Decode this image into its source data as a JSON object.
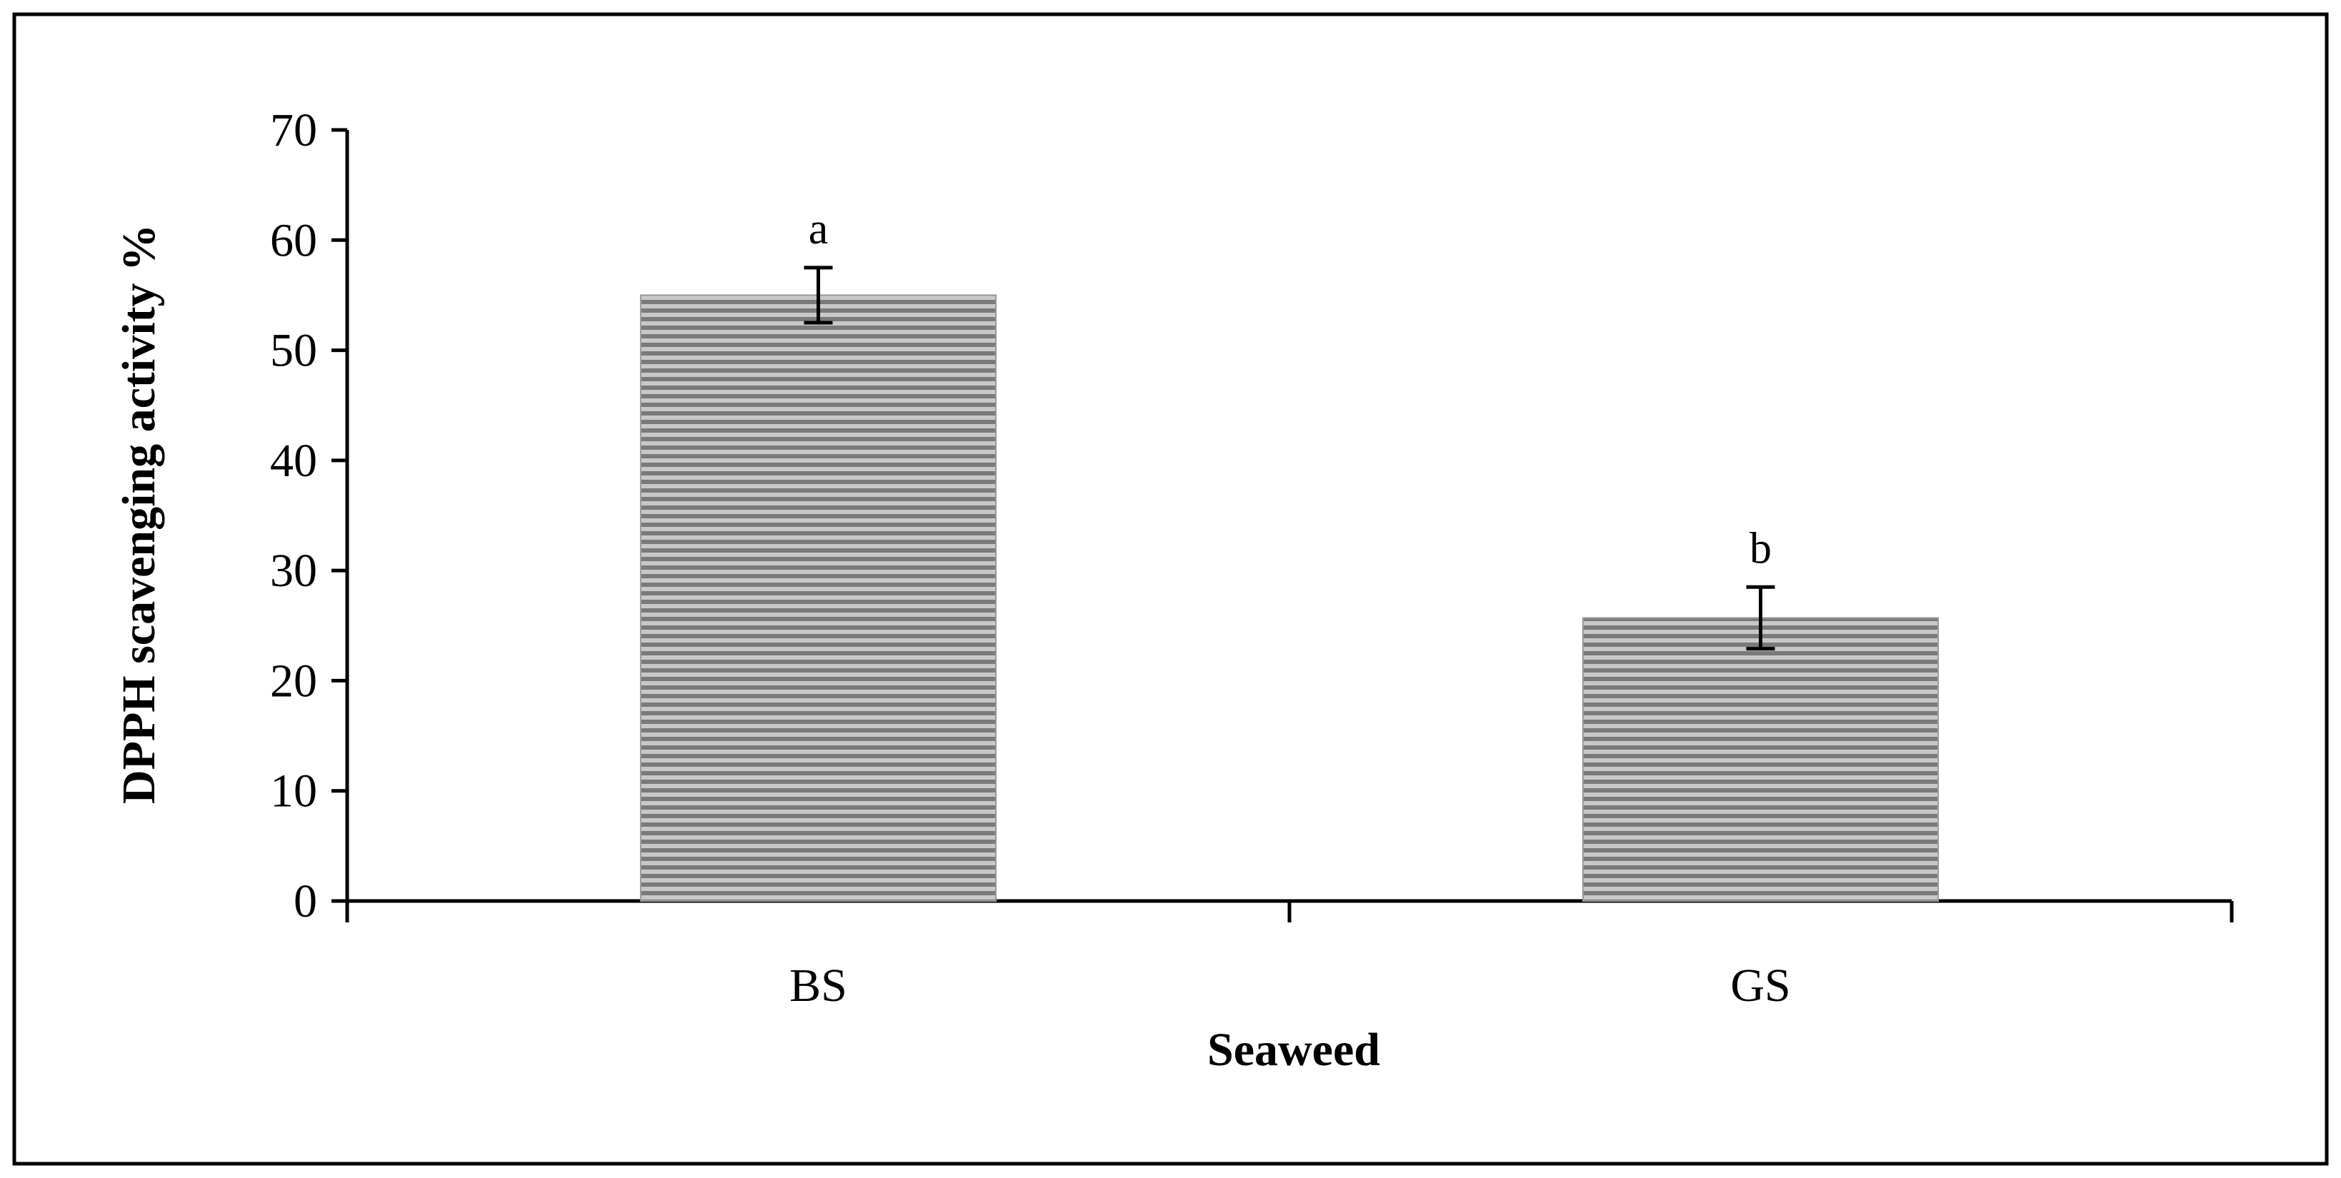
{
  "chart_data": {
    "type": "bar",
    "categories": [
      "BS",
      "GS"
    ],
    "values": [
      55.0,
      25.7
    ],
    "errors": [
      2.5,
      2.8
    ],
    "significance_labels": [
      "a",
      "b"
    ],
    "xlabel": "Seaweed",
    "ylabel": "DPPH scavenging activity %",
    "ylim": [
      0,
      70
    ],
    "yticks": [
      "0",
      "10",
      "20",
      "30",
      "40",
      "50",
      "60",
      "70"
    ],
    "ytick_values": [
      0,
      10,
      20,
      30,
      40,
      50,
      60,
      70
    ],
    "grid": false,
    "legend": "none",
    "bar_fill": "horizontal gray stripes",
    "colors": {
      "bar_stripe_dark": "#7a7a7a",
      "bar_stripe_light": "#c8c8c8",
      "axis": "#000000"
    }
  }
}
